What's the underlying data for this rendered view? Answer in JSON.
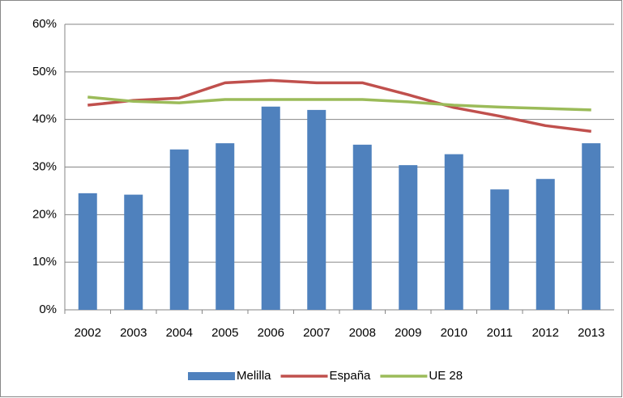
{
  "chart_data": {
    "type": "bar",
    "categories": [
      "2002",
      "2003",
      "2004",
      "2005",
      "2006",
      "2007",
      "2008",
      "2009",
      "2010",
      "2011",
      "2012",
      "2013"
    ],
    "series": [
      {
        "name": "Melilla",
        "type": "bar",
        "color": "#4f81bd",
        "values": [
          24.5,
          24.2,
          33.7,
          35.0,
          42.7,
          42.0,
          34.7,
          30.4,
          32.7,
          25.3,
          27.5,
          35.0
        ]
      },
      {
        "name": "España",
        "type": "line",
        "color": "#c0504d",
        "values": [
          43.0,
          44.0,
          44.5,
          47.7,
          48.2,
          47.7,
          47.7,
          45.2,
          42.5,
          40.7,
          38.7,
          37.5
        ]
      },
      {
        "name": "UE 28",
        "type": "line",
        "color": "#9bbb59",
        "values": [
          44.7,
          43.8,
          43.5,
          44.2,
          44.2,
          44.2,
          44.2,
          43.7,
          43.0,
          42.6,
          42.3,
          42.0
        ]
      }
    ],
    "ylim": [
      0,
      60
    ],
    "yticks": [
      {
        "value": 0,
        "label": "0%"
      },
      {
        "value": 10,
        "label": "10%"
      },
      {
        "value": 20,
        "label": "20%"
      },
      {
        "value": 30,
        "label": "30%"
      },
      {
        "value": 40,
        "label": "40%"
      },
      {
        "value": 50,
        "label": "50%"
      },
      {
        "value": 60,
        "label": "60%"
      }
    ],
    "grid": true,
    "legend": "bottom"
  }
}
